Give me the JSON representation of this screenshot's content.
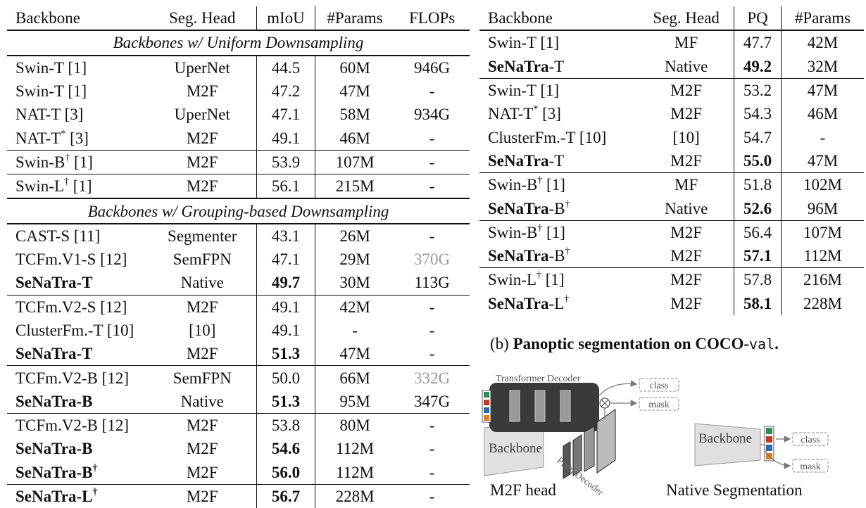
{
  "semseg": {
    "headers": [
      "Backbone",
      "Seg. Head",
      "mIoU",
      "#Params",
      "FLOPs"
    ],
    "sections": [
      {
        "title": "Backbones w/ Uniform Downsampling",
        "groups": [
          [
            {
              "name": "Swin-T [1]",
              "head": "UperNet",
              "miou": "44.5",
              "params": "60M",
              "flops": "946G"
            },
            {
              "name": "Swin-T [1]",
              "head": "M2F",
              "miou": "47.2",
              "params": "47M",
              "flops": "-"
            },
            {
              "name": "NAT-T [3]",
              "head": "UperNet",
              "miou": "47.1",
              "params": "58M",
              "flops": "934G"
            },
            {
              "name": "NAT-T",
              "sup": "*",
              "rest": " [3]",
              "head": "M2F",
              "miou": "49.1",
              "params": "46M",
              "flops": "-"
            }
          ],
          [
            {
              "name": "Swin-B",
              "sup": "†",
              "rest": " [1]",
              "head": "M2F",
              "miou": "53.9",
              "params": "107M",
              "flops": "-"
            }
          ],
          [
            {
              "name": "Swin-L",
              "sup": "†",
              "rest": " [1]",
              "head": "M2F",
              "miou": "56.1",
              "params": "215M",
              "flops": "-"
            }
          ]
        ]
      },
      {
        "title": "Backbones w/ Grouping-based Downsampling",
        "groups": [
          [
            {
              "name": "CAST-S [11]",
              "head": "Segmenter",
              "miou": "43.1",
              "params": "26M",
              "flops": "-"
            },
            {
              "name": "TCFm.V1-S [12]",
              "head": "SemFPN",
              "miou": "47.1",
              "params": "29M",
              "flops": "370G",
              "flops_gray": true
            },
            {
              "name": "SeNaTra-T",
              "bold": true,
              "head": "Native",
              "miou": "49.7",
              "miou_bold": true,
              "params": "30M",
              "flops": "113G"
            }
          ],
          [
            {
              "name": "TCFm.V2-S [12]",
              "head": "M2F",
              "miou": "49.1",
              "params": "42M",
              "flops": "-"
            },
            {
              "name": "ClusterFm.-T [10]",
              "head": "[10]",
              "miou": "49.1",
              "params": "-",
              "flops": "-"
            },
            {
              "name": "SeNaTra-T",
              "bold": true,
              "head": "M2F",
              "miou": "51.3",
              "miou_bold": true,
              "params": "47M",
              "flops": "-"
            }
          ],
          [
            {
              "name": "TCFm.V2-B [12]",
              "head": "SemFPN",
              "miou": "50.0",
              "params": "66M",
              "flops": "332G",
              "flops_gray": true
            },
            {
              "name": "SeNaTra-B",
              "bold": true,
              "head": "Native",
              "miou": "51.3",
              "miou_bold": true,
              "params": "95M",
              "flops": "347G"
            }
          ],
          [
            {
              "name": "TCFm.V2-B [12]",
              "head": "M2F",
              "miou": "53.8",
              "params": "80M",
              "flops": "-"
            },
            {
              "name": "SeNaTra-B",
              "bold": true,
              "head": "M2F",
              "miou": "54.6",
              "miou_bold": true,
              "params": "112M",
              "flops": "-"
            },
            {
              "name": "SeNaTra-B",
              "bold": true,
              "sup": "†",
              "sup_bold": true,
              "head": "M2F",
              "miou": "56.0",
              "miou_bold": true,
              "params": "112M",
              "flops": "-"
            }
          ],
          [
            {
              "name": "SeNaTra-L",
              "bold": true,
              "sup": "†",
              "sup_bold": true,
              "head": "M2F",
              "miou": "56.7",
              "miou_bold": true,
              "params": "228M",
              "flops": "-"
            }
          ]
        ]
      }
    ]
  },
  "panoptic": {
    "headers": [
      "Backbone",
      "Seg. Head",
      "PQ",
      "#Params"
    ],
    "groups": [
      [
        {
          "name": "Swin-T [1]",
          "head": "MF",
          "pq": "47.7",
          "params": "42M"
        },
        {
          "name": "SeNaTra",
          "bold": true,
          "rest": "-T",
          "head": "Native",
          "pq": "49.2",
          "pq_bold": true,
          "params": "32M"
        }
      ],
      [
        {
          "name": "Swin-T [1]",
          "head": "M2F",
          "pq": "53.2",
          "params": "47M"
        },
        {
          "name": "NAT-T",
          "sup": "*",
          "rest": " [3]",
          "head": "M2F",
          "pq": "54.3",
          "params": "46M"
        },
        {
          "name": "ClusterFm.-T [10]",
          "head": "[10]",
          "pq": "54.7",
          "params": "-"
        },
        {
          "name": "SeNaTra",
          "bold": true,
          "rest": "-T",
          "head": "M2F",
          "pq": "55.0",
          "pq_bold": true,
          "params": "47M"
        }
      ],
      [
        {
          "name": "Swin-B",
          "sup": "†",
          "rest": " [1]",
          "head": "MF",
          "pq": "51.8",
          "params": "102M"
        },
        {
          "name": "SeNaTra",
          "bold": true,
          "rest": "-B",
          "rest_sup": "†",
          "head": "Native",
          "pq": "52.6",
          "pq_bold": true,
          "params": "96M"
        }
      ],
      [
        {
          "name": "Swin-B",
          "sup": "†",
          "rest": " [1]",
          "head": "M2F",
          "pq": "56.4",
          "params": "107M"
        },
        {
          "name": "SeNaTra",
          "bold": true,
          "rest": "-B",
          "rest_sup": "†",
          "head": "M2F",
          "pq": "57.1",
          "pq_bold": true,
          "params": "112M"
        }
      ],
      [
        {
          "name": "Swin-L",
          "sup": "†",
          "rest": " [1]",
          "head": "M2F",
          "pq": "57.8",
          "params": "216M"
        },
        {
          "name": "SeNaTra",
          "bold": true,
          "rest": "-L",
          "rest_sup": "†",
          "head": "M2F",
          "pq": "58.1",
          "pq_bold": true,
          "params": "228M"
        }
      ]
    ],
    "caption": {
      "label": "(b) ",
      "bold": "Panoptic segmentation on COCO-",
      "code": "val",
      "end": "."
    }
  },
  "diagram": {
    "transformer_decoder": "Transformer Decoder",
    "backbone": "Backbone",
    "pixel_decoder": "Pixel Decoder",
    "class": "class",
    "mask": "mask",
    "m2f_caption": "M2F head",
    "native_caption": "Native Segmentation",
    "token_colors": [
      "#2e8b57",
      "#c0392b",
      "#2d6ca8",
      "#d9822b"
    ]
  }
}
